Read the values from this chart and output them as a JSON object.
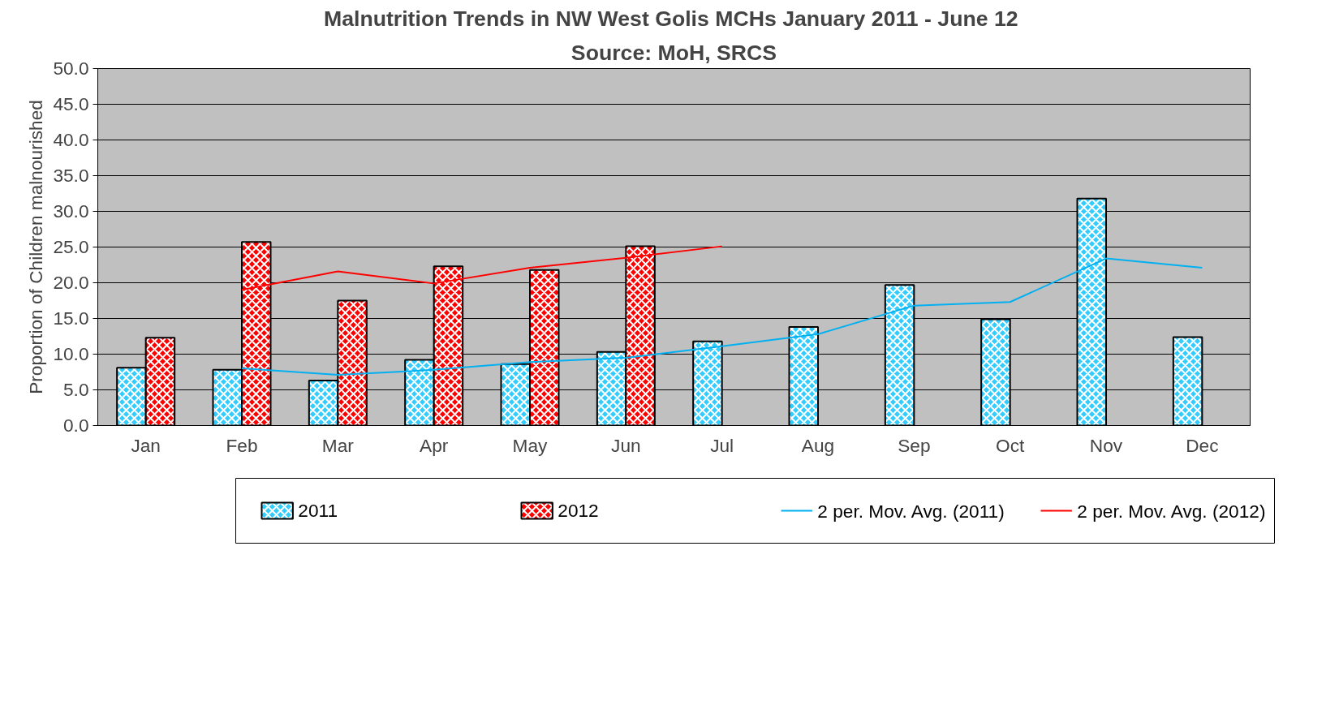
{
  "chart_data": {
    "type": "bar",
    "title": "Malnutrition Trends in NW  West Golis MCHs January 2011 - June 12",
    "subtitle": "Source: MoH, SRCS",
    "ylabel": "Proportion of Children malnourished",
    "categories": [
      "Jan",
      "Feb",
      "Mar",
      "Apr",
      "May",
      "Jun",
      "Jul",
      "Aug",
      "Sep",
      "Oct",
      "Nov",
      "Dec"
    ],
    "series": [
      {
        "name": "2011",
        "color": "#33ccff",
        "values": [
          8.1,
          7.8,
          6.3,
          9.2,
          8.6,
          10.3,
          11.8,
          13.8,
          19.7,
          14.9,
          31.8,
          12.4
        ]
      },
      {
        "name": "2012",
        "color": "#ff0000",
        "values": [
          12.3,
          25.7,
          17.5,
          22.3,
          21.8,
          25.1,
          null,
          null,
          null,
          null,
          null,
          null
        ]
      },
      {
        "name": "2 per. Mov. Avg. (2011)",
        "type": "line",
        "color": "#00b0f0",
        "values": [
          null,
          8.0,
          7.1,
          7.8,
          8.9,
          9.5,
          11.1,
          12.8,
          16.8,
          17.3,
          23.4,
          22.1
        ]
      },
      {
        "name": "2 per. Mov. Avg. (2012)",
        "type": "line",
        "color": "#ff0000",
        "values": [
          null,
          19.0,
          21.6,
          19.9,
          22.1,
          23.5,
          25.1,
          null,
          null,
          null,
          null,
          null
        ]
      }
    ],
    "ylim": [
      0,
      50
    ],
    "yticks": [
      {
        "value": 0,
        "label": "0.0"
      },
      {
        "value": 5,
        "label": "5.0"
      },
      {
        "value": 10,
        "label": "10.0"
      },
      {
        "value": 15,
        "label": "15.0"
      },
      {
        "value": 20,
        "label": "20.0"
      },
      {
        "value": 25,
        "label": "25.0"
      },
      {
        "value": 30,
        "label": "30.0"
      },
      {
        "value": 35,
        "label": "35.0"
      },
      {
        "value": 40,
        "label": "40.0"
      },
      {
        "value": 45,
        "label": "45.0"
      },
      {
        "value": 50,
        "label": "50.0"
      }
    ],
    "grid": "y",
    "legend": "bottom"
  }
}
